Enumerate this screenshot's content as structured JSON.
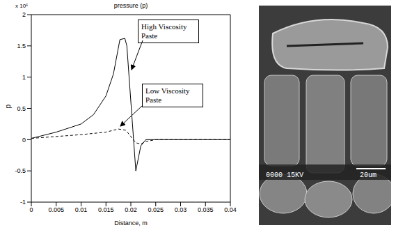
{
  "chart_data": {
    "type": "line",
    "title": "pressure (p)",
    "x_label": "Distance, m",
    "y_label": "p",
    "y_multiplier_label": "x 10⁶",
    "xlim": [
      0,
      0.04
    ],
    "xticks": [
      0,
      0.005,
      0.01,
      0.015,
      0.02,
      0.025,
      0.03,
      0.035,
      0.04
    ],
    "ylim": [
      -1,
      2
    ],
    "yticks": [
      -1,
      -0.5,
      0,
      0.5,
      1,
      1.5,
      2
    ],
    "series": [
      {
        "name": "High Viscosity Paste",
        "color": "#000000",
        "line_style": "solid",
        "x": [
          0,
          0.005,
          0.01,
          0.0125,
          0.015,
          0.0165,
          0.0178,
          0.0188,
          0.0192,
          0.021,
          0.022,
          0.023,
          0.025,
          0.04
        ],
        "values": [
          0.02,
          0.12,
          0.25,
          0.4,
          0.7,
          1.05,
          1.6,
          1.62,
          1.5,
          -0.5,
          -0.1,
          0,
          0,
          0
        ]
      },
      {
        "name": "Low Viscosity Paste",
        "color": "#000000",
        "line_style": "dashed",
        "x": [
          0,
          0.005,
          0.01,
          0.015,
          0.0175,
          0.019,
          0.02,
          0.021,
          0.022,
          0.023,
          0.025,
          0.04
        ],
        "values": [
          0.02,
          0.05,
          0.08,
          0.12,
          0.17,
          0.15,
          0.05,
          -0.05,
          -0.07,
          -0.03,
          0,
          0
        ]
      }
    ]
  },
  "image": {
    "scale_text": "0000 15KV",
    "scale_bar_label": "20um"
  }
}
